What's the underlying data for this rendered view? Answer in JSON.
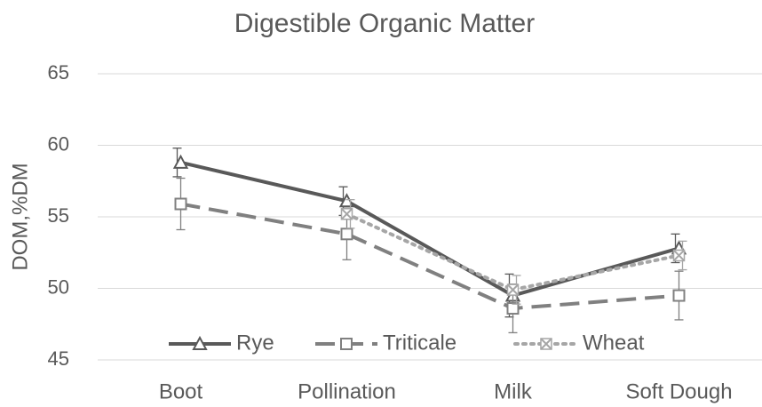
{
  "chart_data": {
    "type": "line",
    "title": "Digestible Organic Matter",
    "y_label": "DOM,%DM",
    "categories": [
      "Boot",
      "Pollination",
      "Milk",
      "Soft Dough"
    ],
    "series": [
      {
        "name": "Rye",
        "color": "#595959",
        "style": "solid",
        "marker": "triangle",
        "values": [
          58.8,
          56.1,
          49.5,
          52.8
        ],
        "errors": [
          1.0,
          1.0,
          1.5,
          1.0
        ]
      },
      {
        "name": "Triticale",
        "color": "#808080",
        "style": "dashed",
        "marker": "square",
        "values": [
          55.9,
          53.8,
          48.6,
          49.5
        ],
        "errors": [
          1.8,
          1.8,
          1.7,
          1.7
        ]
      },
      {
        "name": "Wheat",
        "color": "#a6a6a6",
        "style": "dotted",
        "marker": "x-square",
        "values": [
          null,
          55.2,
          49.9,
          52.3
        ],
        "errors": [
          null,
          1.0,
          1.0,
          1.0
        ]
      }
    ],
    "ylim": [
      45,
      65
    ],
    "yticks": [
      45,
      50,
      55,
      60,
      65
    ],
    "grid": true,
    "legend": "bottom"
  }
}
